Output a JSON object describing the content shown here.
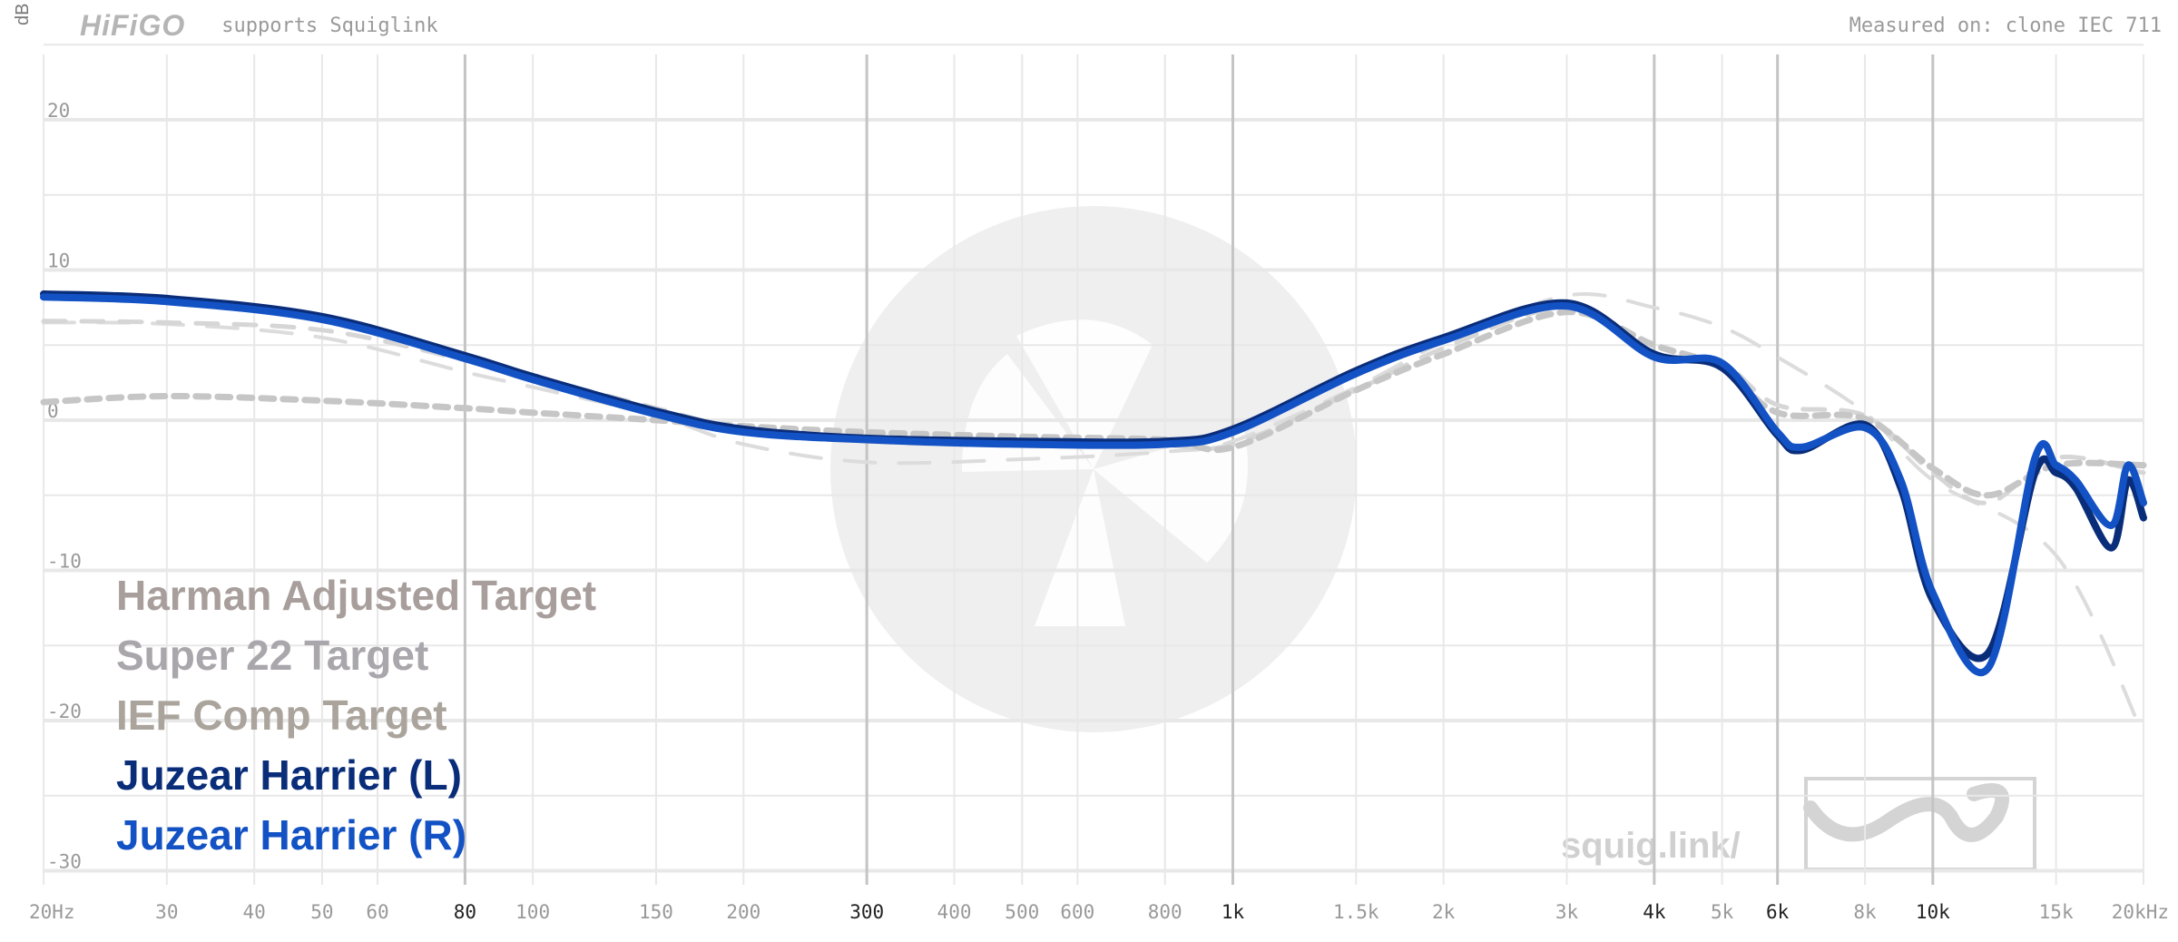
{
  "header": {
    "brand": "HiFiGO",
    "supports": "supports Squiglink",
    "measured": "Measured on: clone IEC 711"
  },
  "watermark": "squig.link/",
  "colors": {
    "grid": "#e8e8e8",
    "grid_major": "#c4c4c4",
    "target": "#c2c2c2",
    "left": "#0a2d7a",
    "right": "#1352c4"
  },
  "chart_data": {
    "type": "line",
    "xscale": "log",
    "xlim": [
      20,
      20000
    ],
    "ylim": [
      -30,
      25
    ],
    "ylabel": "dB",
    "grid": true,
    "legend_position": "bottom-left",
    "x_ticks": [
      {
        "v": 20,
        "label": "20Hz",
        "major": false
      },
      {
        "v": 30,
        "label": "30",
        "major": false
      },
      {
        "v": 40,
        "label": "40",
        "major": false
      },
      {
        "v": 50,
        "label": "50",
        "major": false
      },
      {
        "v": 60,
        "label": "60",
        "major": false
      },
      {
        "v": 80,
        "label": "80",
        "major": true
      },
      {
        "v": 100,
        "label": "100",
        "major": false
      },
      {
        "v": 150,
        "label": "150",
        "major": false
      },
      {
        "v": 200,
        "label": "200",
        "major": false
      },
      {
        "v": 300,
        "label": "300",
        "major": true
      },
      {
        "v": 400,
        "label": "400",
        "major": false
      },
      {
        "v": 500,
        "label": "500",
        "major": false
      },
      {
        "v": 600,
        "label": "600",
        "major": false
      },
      {
        "v": 800,
        "label": "800",
        "major": false
      },
      {
        "v": 1000,
        "label": "1k",
        "major": true
      },
      {
        "v": 1500,
        "label": "1.5k",
        "major": false
      },
      {
        "v": 2000,
        "label": "2k",
        "major": false
      },
      {
        "v": 3000,
        "label": "3k",
        "major": false
      },
      {
        "v": 4000,
        "label": "4k",
        "major": true
      },
      {
        "v": 5000,
        "label": "5k",
        "major": false
      },
      {
        "v": 6000,
        "label": "6k",
        "major": true
      },
      {
        "v": 8000,
        "label": "8k",
        "major": false
      },
      {
        "v": 10000,
        "label": "10k",
        "major": true
      },
      {
        "v": 15000,
        "label": "15k",
        "major": false
      },
      {
        "v": 20000,
        "label": "20kHz",
        "major": false
      }
    ],
    "y_ticks": [
      {
        "v": 20,
        "label": "20"
      },
      {
        "v": 10,
        "label": "10"
      },
      {
        "v": 0,
        "label": "0"
      },
      {
        "v": -10,
        "label": "-10"
      },
      {
        "v": -20,
        "label": "-20"
      },
      {
        "v": -30,
        "label": "-30"
      }
    ],
    "legend": [
      {
        "label": "Harman Adjusted Target",
        "color": "#a89e9c"
      },
      {
        "label": "Super 22 Target",
        "color": "#a9a6ac"
      },
      {
        "label": "IEF Comp Target",
        "color": "#aaa49c"
      },
      {
        "label": "Juzear Harrier (L)",
        "color": "#0a2d7a"
      },
      {
        "label": "Juzear Harrier (R)",
        "color": "#1352c4"
      }
    ],
    "series": [
      {
        "name": "Harman Adjusted Target",
        "style": "dash-long",
        "color": "#dcdcdc",
        "points": [
          [
            20,
            6.5
          ],
          [
            30,
            6.4
          ],
          [
            50,
            5.5
          ],
          [
            80,
            3.2
          ],
          [
            100,
            2.2
          ],
          [
            150,
            0.3
          ],
          [
            200,
            -1.6
          ],
          [
            300,
            -2.8
          ],
          [
            500,
            -2.6
          ],
          [
            800,
            -2.1
          ],
          [
            1000,
            -1.4
          ],
          [
            1500,
            2.2
          ],
          [
            2000,
            5.2
          ],
          [
            3000,
            8.3
          ],
          [
            4000,
            7.5
          ],
          [
            5000,
            6.2
          ],
          [
            6000,
            4.2
          ],
          [
            8000,
            0.5
          ],
          [
            10000,
            -4.0
          ],
          [
            15000,
            -9.0
          ],
          [
            20000,
            -21.0
          ]
        ]
      },
      {
        "name": "Super 22 Target",
        "style": "dash-mid",
        "color": "#d6d6d6",
        "points": [
          [
            20,
            6.6
          ],
          [
            30,
            6.5
          ],
          [
            50,
            6.0
          ],
          [
            80,
            4.0
          ],
          [
            100,
            2.9
          ],
          [
            150,
            0.8
          ],
          [
            200,
            -0.6
          ],
          [
            300,
            -1.4
          ],
          [
            500,
            -1.7
          ],
          [
            800,
            -1.7
          ],
          [
            1000,
            -1.6
          ],
          [
            1500,
            2.0
          ],
          [
            2000,
            4.8
          ],
          [
            3000,
            7.5
          ],
          [
            4000,
            4.5
          ],
          [
            5000,
            3.8
          ],
          [
            6000,
            1.0
          ],
          [
            8000,
            0.3
          ],
          [
            10000,
            -3.5
          ],
          [
            12000,
            -5.5
          ],
          [
            15000,
            -2.5
          ],
          [
            20000,
            -3.5
          ]
        ]
      },
      {
        "name": "IEF Comp Target",
        "style": "dash-short",
        "color": "#c6c6c6",
        "points": [
          [
            20,
            1.2
          ],
          [
            30,
            1.6
          ],
          [
            50,
            1.3
          ],
          [
            80,
            0.8
          ],
          [
            100,
            0.5
          ],
          [
            150,
            0.0
          ],
          [
            200,
            -0.4
          ],
          [
            300,
            -0.8
          ],
          [
            500,
            -1.1
          ],
          [
            800,
            -1.3
          ],
          [
            1000,
            -1.8
          ],
          [
            1500,
            2.0
          ],
          [
            2000,
            4.4
          ],
          [
            3000,
            7.2
          ],
          [
            4000,
            5.0
          ],
          [
            5000,
            3.5
          ],
          [
            6000,
            0.5
          ],
          [
            8000,
            0.1
          ],
          [
            10000,
            -3.2
          ],
          [
            12000,
            -5.0
          ],
          [
            15000,
            -3.0
          ],
          [
            20000,
            -3.0
          ]
        ]
      },
      {
        "name": "Juzear Harrier (L)",
        "style": "solid",
        "color": "#0a2d7a",
        "points": [
          [
            20,
            8.4
          ],
          [
            30,
            8.1
          ],
          [
            50,
            6.9
          ],
          [
            80,
            4.3
          ],
          [
            100,
            2.9
          ],
          [
            150,
            0.6
          ],
          [
            200,
            -0.6
          ],
          [
            300,
            -1.2
          ],
          [
            500,
            -1.4
          ],
          [
            800,
            -1.4
          ],
          [
            1000,
            -0.6
          ],
          [
            1500,
            3.3
          ],
          [
            2000,
            5.5
          ],
          [
            3000,
            7.8
          ],
          [
            4000,
            4.4
          ],
          [
            5000,
            3.5
          ],
          [
            6000,
            -1.0
          ],
          [
            6500,
            -2.0
          ],
          [
            8000,
            -0.3
          ],
          [
            9000,
            -4.5
          ],
          [
            10000,
            -12.0
          ],
          [
            12000,
            -15.5
          ],
          [
            14000,
            -3.5
          ],
          [
            15000,
            -3.5
          ],
          [
            16000,
            -4.5
          ],
          [
            18000,
            -8.5
          ],
          [
            19000,
            -4.0
          ],
          [
            20000,
            -6.5
          ]
        ]
      },
      {
        "name": "Juzear Harrier (R)",
        "style": "solid",
        "color": "#1352c4",
        "points": [
          [
            20,
            8.2
          ],
          [
            30,
            7.9
          ],
          [
            50,
            6.7
          ],
          [
            80,
            4.1
          ],
          [
            100,
            2.7
          ],
          [
            150,
            0.4
          ],
          [
            200,
            -0.8
          ],
          [
            300,
            -1.3
          ],
          [
            500,
            -1.6
          ],
          [
            800,
            -1.6
          ],
          [
            1000,
            -0.8
          ],
          [
            1500,
            3.1
          ],
          [
            2000,
            5.3
          ],
          [
            3000,
            7.6
          ],
          [
            4000,
            4.2
          ],
          [
            5000,
            3.8
          ],
          [
            6000,
            -0.8
          ],
          [
            6500,
            -1.8
          ],
          [
            8000,
            -0.5
          ],
          [
            9000,
            -4.0
          ],
          [
            10000,
            -11.5
          ],
          [
            12000,
            -16.5
          ],
          [
            14000,
            -2.5
          ],
          [
            15000,
            -3.0
          ],
          [
            16000,
            -4.0
          ],
          [
            18000,
            -7.0
          ],
          [
            19000,
            -3.0
          ],
          [
            20000,
            -5.5
          ]
        ]
      }
    ]
  }
}
